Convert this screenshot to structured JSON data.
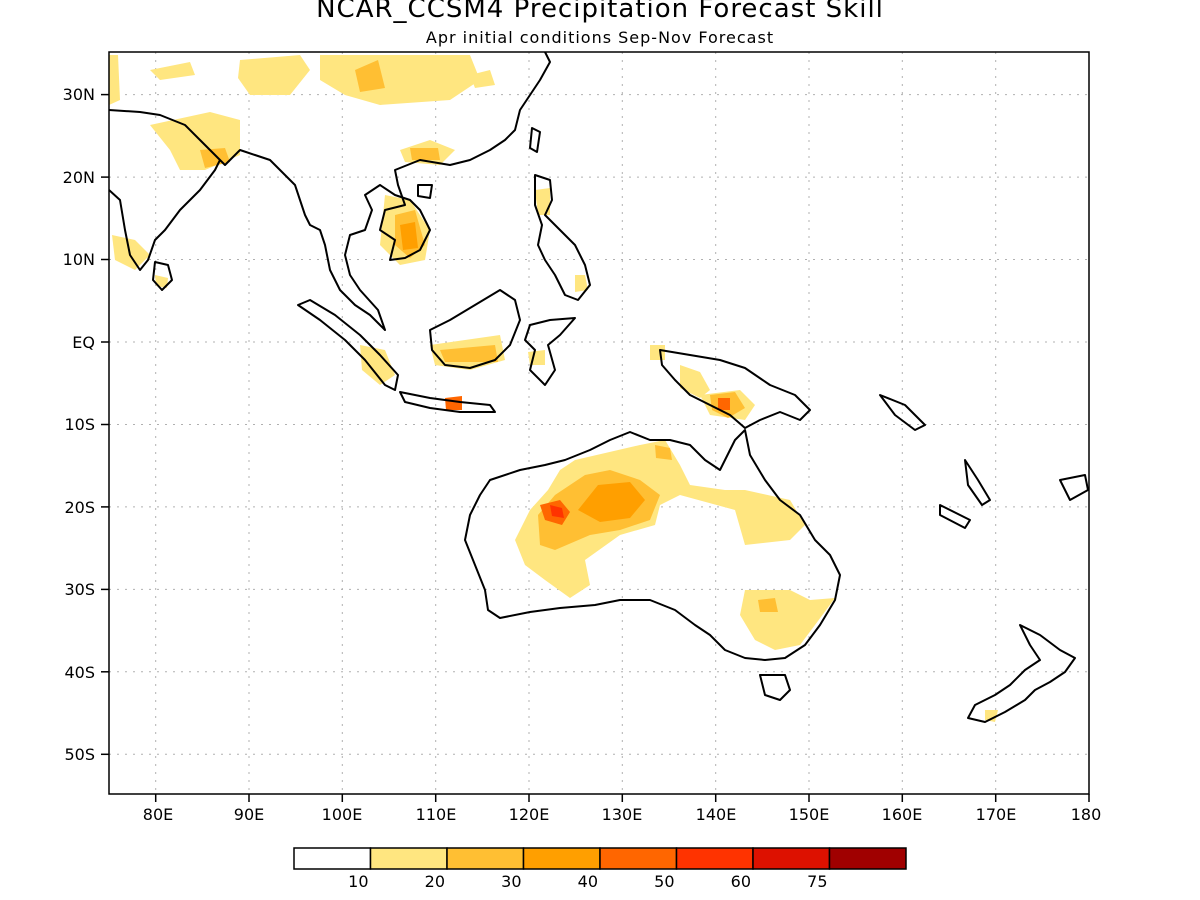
{
  "title": "NCAR_CCSM4 Precipitation Forecast Skill",
  "subtitle": "Apr initial conditions  Sep-Nov Forecast",
  "map": {
    "lon_range": [
      75,
      180
    ],
    "lat_range": [
      -55,
      35
    ],
    "x_ticks": [
      "80E",
      "90E",
      "100E",
      "110E",
      "120E",
      "130E",
      "140E",
      "150E",
      "160E",
      "170E",
      "180"
    ],
    "y_ticks": [
      "30N",
      "20N",
      "10N",
      "EQ",
      "10S",
      "20S",
      "30S",
      "40S",
      "50S"
    ],
    "gridlines": true
  },
  "legend": {
    "labels": [
      "10",
      "20",
      "30",
      "40",
      "50",
      "60",
      "75"
    ],
    "colors": [
      "#ffffff",
      "#ffe680",
      "#ffbf33",
      "#ff9f00",
      "#ff6600",
      "#ff3300",
      "#dd1100",
      "#a00000"
    ]
  }
}
